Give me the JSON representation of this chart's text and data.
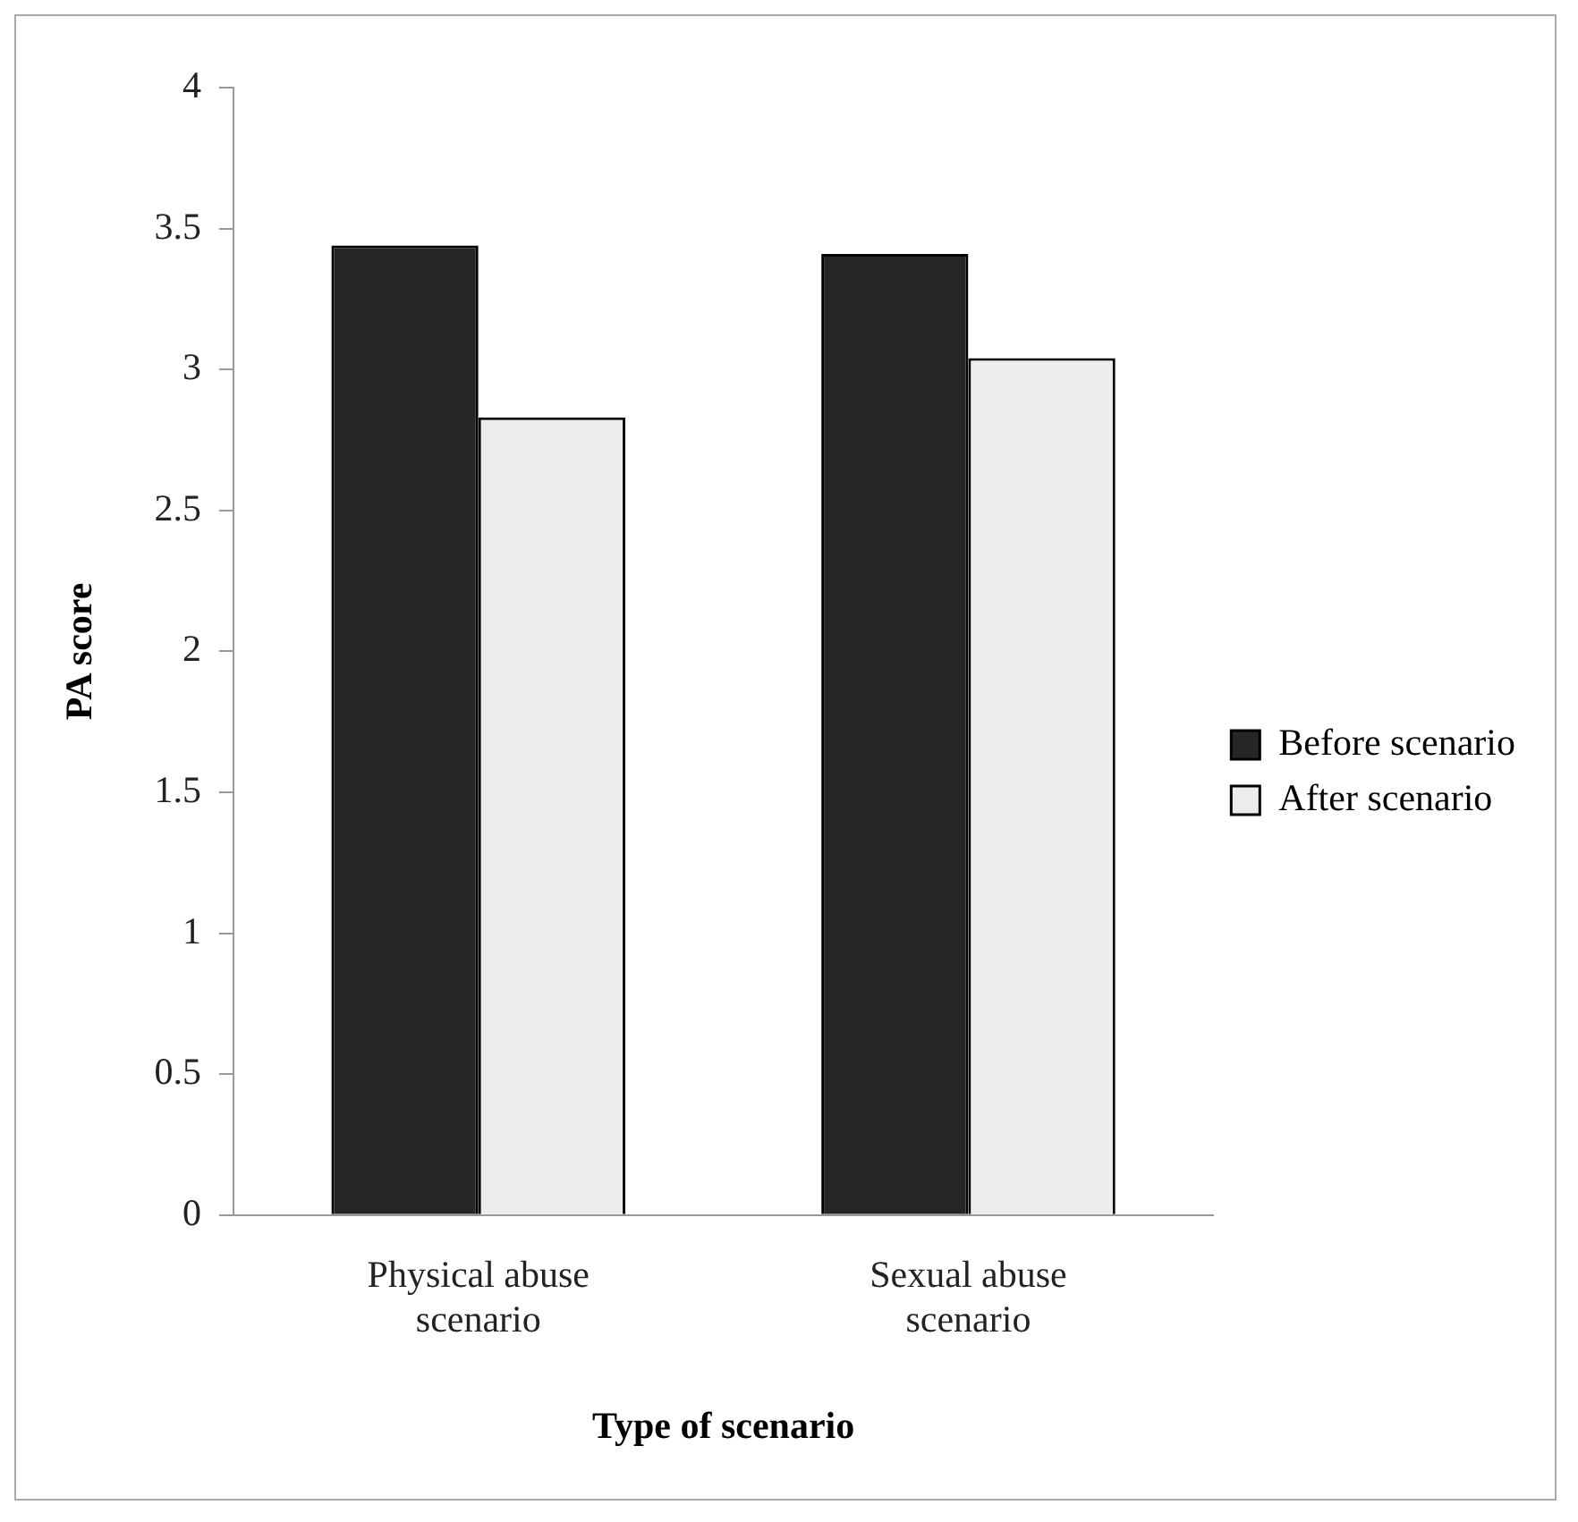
{
  "chart_data": {
    "type": "bar",
    "xlabel": "Type of scenario",
    "ylabel": "PA score",
    "categories": [
      "Physical abuse scenario",
      "Sexual abuse scenario"
    ],
    "series": [
      {
        "name": "Before scenario",
        "color": "#262626",
        "values": [
          3.44,
          3.41
        ]
      },
      {
        "name": "After scenario",
        "color": "#ececec",
        "values": [
          2.83,
          3.04
        ]
      }
    ],
    "ylim": [
      0,
      4
    ],
    "yticks": [
      0,
      0.5,
      1,
      1.5,
      2,
      2.5,
      3,
      3.5,
      4
    ],
    "grid": false,
    "legend": "right"
  }
}
